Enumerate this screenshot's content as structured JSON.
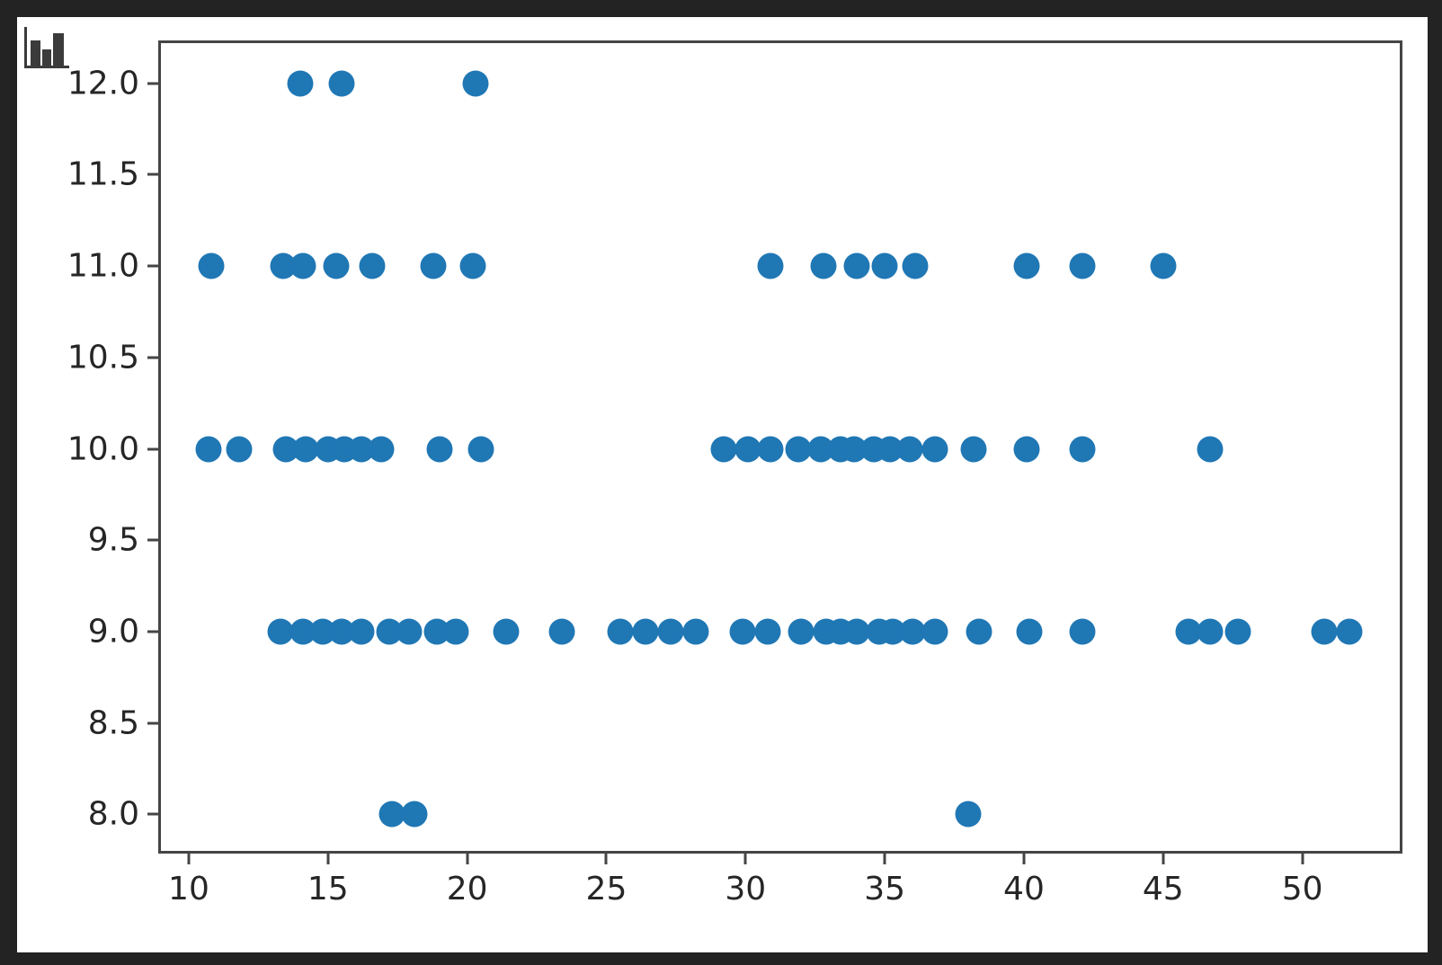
{
  "window": {
    "background": "#232323",
    "figure_background": "#ffffff"
  },
  "icon": {
    "name": "bar-chart-icon",
    "color": "#3b3b3b"
  },
  "chart_data": {
    "type": "scatter",
    "title": "",
    "xlabel": "",
    "ylabel": "",
    "grid": false,
    "legend": null,
    "marker_color": "#1f77b4",
    "marker_diameter_px": 29,
    "spine_color": "#454545",
    "tick_text_color": "#262626",
    "xlim": [
      9.0,
      53.5
    ],
    "ylim": [
      7.8,
      12.22
    ],
    "xticks": [
      10,
      15,
      20,
      25,
      30,
      35,
      40,
      45,
      50
    ],
    "xtick_labels": [
      "10",
      "15",
      "20",
      "25",
      "30",
      "35",
      "40",
      "45",
      "50"
    ],
    "yticks": [
      8.0,
      8.5,
      9.0,
      9.5,
      10.0,
      10.5,
      11.0,
      11.5,
      12.0
    ],
    "ytick_labels": [
      "8.0",
      "8.5",
      "9.0",
      "9.5",
      "10.0",
      "10.5",
      "11.0",
      "11.5",
      "12.0"
    ],
    "points": [
      [
        14.0,
        12
      ],
      [
        15.5,
        12
      ],
      [
        20.3,
        12
      ],
      [
        10.8,
        11
      ],
      [
        13.4,
        11
      ],
      [
        14.1,
        11
      ],
      [
        15.3,
        11
      ],
      [
        16.6,
        11
      ],
      [
        18.8,
        11
      ],
      [
        20.2,
        11
      ],
      [
        30.9,
        11
      ],
      [
        32.8,
        11
      ],
      [
        34.0,
        11
      ],
      [
        35.0,
        11
      ],
      [
        36.1,
        11
      ],
      [
        40.1,
        11
      ],
      [
        42.1,
        11
      ],
      [
        45.0,
        11
      ],
      [
        10.7,
        10
      ],
      [
        11.8,
        10
      ],
      [
        13.5,
        10
      ],
      [
        14.2,
        10
      ],
      [
        15.0,
        10
      ],
      [
        15.6,
        10
      ],
      [
        16.2,
        10
      ],
      [
        16.9,
        10
      ],
      [
        19.0,
        10
      ],
      [
        20.5,
        10
      ],
      [
        29.2,
        10
      ],
      [
        30.1,
        10
      ],
      [
        30.9,
        10
      ],
      [
        31.9,
        10
      ],
      [
        32.7,
        10
      ],
      [
        33.4,
        10
      ],
      [
        33.9,
        10
      ],
      [
        34.6,
        10
      ],
      [
        35.2,
        10
      ],
      [
        35.9,
        10
      ],
      [
        36.8,
        10
      ],
      [
        38.2,
        10
      ],
      [
        40.1,
        10
      ],
      [
        42.1,
        10
      ],
      [
        46.7,
        10
      ],
      [
        13.3,
        9
      ],
      [
        14.1,
        9
      ],
      [
        14.8,
        9
      ],
      [
        15.5,
        9
      ],
      [
        16.2,
        9
      ],
      [
        17.2,
        9
      ],
      [
        17.9,
        9
      ],
      [
        18.9,
        9
      ],
      [
        19.6,
        9
      ],
      [
        21.4,
        9
      ],
      [
        23.4,
        9
      ],
      [
        25.5,
        9
      ],
      [
        26.4,
        9
      ],
      [
        27.3,
        9
      ],
      [
        28.2,
        9
      ],
      [
        29.9,
        9
      ],
      [
        30.8,
        9
      ],
      [
        32.0,
        9
      ],
      [
        32.9,
        9
      ],
      [
        33.4,
        9
      ],
      [
        34.0,
        9
      ],
      [
        34.8,
        9
      ],
      [
        35.3,
        9
      ],
      [
        36.0,
        9
      ],
      [
        36.8,
        9
      ],
      [
        38.4,
        9
      ],
      [
        40.2,
        9
      ],
      [
        42.1,
        9
      ],
      [
        45.9,
        9
      ],
      [
        46.7,
        9
      ],
      [
        47.7,
        9
      ],
      [
        50.8,
        9
      ],
      [
        51.7,
        9
      ],
      [
        17.3,
        8
      ],
      [
        18.1,
        8
      ],
      [
        38.0,
        8
      ]
    ]
  }
}
